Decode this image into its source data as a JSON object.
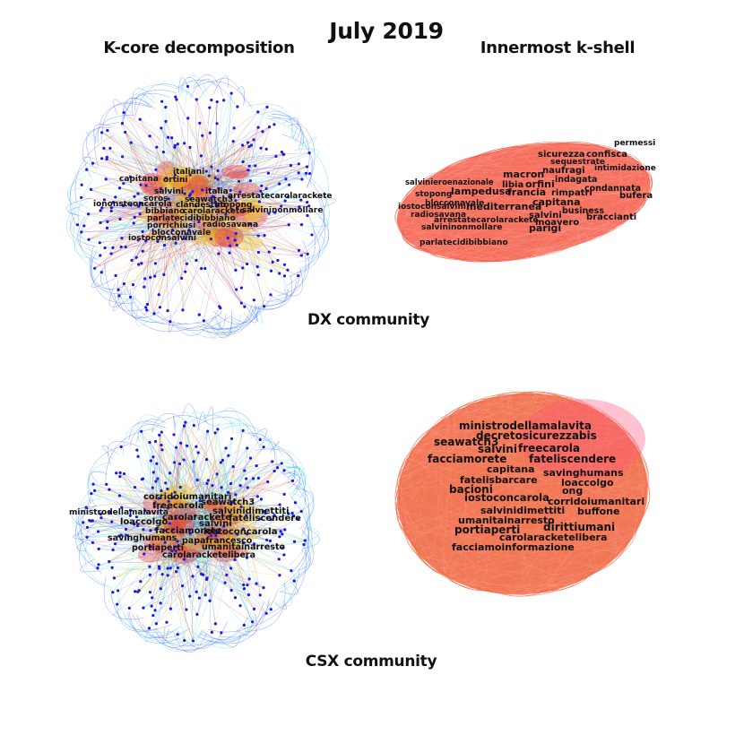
{
  "title": "July 2019",
  "columns": {
    "left": "K-core decomposition",
    "right": "Innermost k-shell"
  },
  "rows": {
    "top": "DX community",
    "bottom": "CSX community"
  },
  "colors": {
    "node": "#1a1ae0",
    "edge_blue": "#3355ff",
    "edge_cyan": "#22d3e6",
    "edge_red": "#e33030",
    "edge_yellow": "#f0c020",
    "shell_dx": "#f4624e",
    "shell_csx": "#f06a45"
  },
  "panels": {
    "dx_kcore": {
      "labels": [
        "italiani",
        "capitana",
        "ortini",
        "salvini",
        "italia",
        "arrestatecarolarackete",
        "soros",
        "seawatch3",
        "iononsteoncarola",
        "clandestini",
        "stopong",
        "salvininonmollare",
        "bibbiano",
        "carolarackete",
        "parlatecidibibbiano",
        "porrichiusi",
        "radiosavana",
        "blocconavale",
        "iostoconsalvini"
      ]
    },
    "dx_shell": {
      "labels": [
        "permessi",
        "sicurezza",
        "confisca",
        "sequestrate",
        "naufragi",
        "intimidazione",
        "macron",
        "indagata",
        "salvinieroenazionale",
        "libia",
        "orfini",
        "condannata",
        "stopong",
        "lampedusa",
        "francia",
        "rimpatri",
        "bufera",
        "blocconavale",
        "capitana",
        "iostoconsalvini",
        "mediterranea",
        "business",
        "radiosavana",
        "salvini",
        "braccianti",
        "arrestatecarolarackete",
        "moavero",
        "salvininonmollare",
        "parigi",
        "parlatecidibibbiano"
      ]
    },
    "csx_kcore": {
      "labels": [
        "corridoiumanitari",
        "seawatch3",
        "ministrodellamalavita",
        "freecarola",
        "salvinidimettiti",
        "carolarackete",
        "fateliscendere",
        "loaccolgo",
        "salvini",
        "facciamorete",
        "iostoconcarola",
        "savinghumans",
        "papafrancesco",
        "portiaperti",
        "umanitainarresto",
        "carolaracketelibera"
      ]
    },
    "csx_shell": {
      "labels": [
        "ministrodellamalavita",
        "decretosicurezzabis",
        "seawatch3",
        "salvini",
        "freecarola",
        "facciamorete",
        "fateliscendere",
        "capitana",
        "savinghumans",
        "fatelisbarcare",
        "loaccolgo",
        "bacioni",
        "ong",
        "iostoconcarola",
        "corridoiumanitari",
        "salvinidimettiti",
        "buffone",
        "umanitainarresto",
        "portiaperti",
        "dirittiumani",
        "carolaracketelibera",
        "facciamoinformazione"
      ]
    }
  }
}
